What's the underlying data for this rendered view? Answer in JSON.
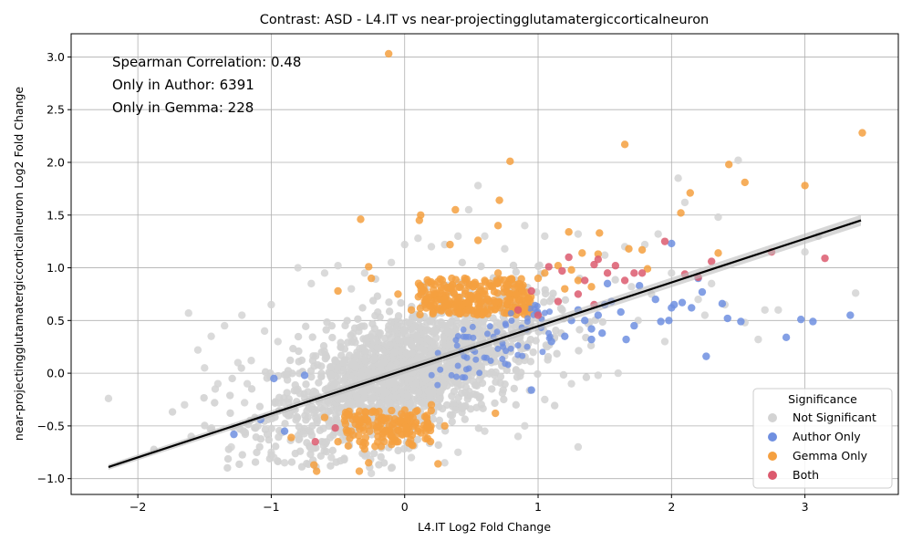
{
  "chart_data": {
    "type": "scatter",
    "title": "Contrast: ASD - L4.IT vs near-projectingglutamatergiccorticalneuron",
    "xlabel": "L4.IT Log2 Fold Change",
    "ylabel": "near-projectingglutamatergiccorticalneuron Log2 Fold Change",
    "xlim": [
      -2.5,
      3.7
    ],
    "ylim": [
      -1.15,
      3.22
    ],
    "x_ticks": [
      -2,
      -1,
      0,
      1,
      2,
      3
    ],
    "y_ticks": [
      -1.0,
      -0.5,
      0.0,
      0.5,
      1.0,
      1.5,
      2.0,
      2.5,
      3.0
    ],
    "x_tick_labels": [
      "−2",
      "−1",
      "0",
      "1",
      "2",
      "3"
    ],
    "y_tick_labels": [
      "−1.0",
      "−0.5",
      "0.0",
      "0.5",
      "1.0",
      "1.5",
      "2.0",
      "2.5",
      "3.0"
    ],
    "grid": true,
    "annotations": [
      "Spearman Correlation: 0.48",
      "Only in Author: 6391",
      "Only in Gemma: 228"
    ],
    "legend": {
      "title": "Significance",
      "placement": "lower-right",
      "entries": [
        "Not Significant",
        "Author Only",
        "Gemma Only",
        "Both"
      ]
    },
    "regression_line": {
      "x": [
        -2.22,
        3.42
      ],
      "y": [
        -0.89,
        1.45
      ],
      "color": "#000000"
    },
    "series": [
      {
        "name": "Not Significant",
        "color": "#d3d3d3",
        "points": [
          [
            -2.22,
            -0.24
          ],
          [
            -1.65,
            -0.3
          ],
          [
            -1.62,
            0.57
          ],
          [
            -1.55,
            0.22
          ],
          [
            -1.5,
            0.05
          ],
          [
            -1.42,
            -0.15
          ],
          [
            -1.35,
            0.45
          ],
          [
            -1.3,
            -0.7
          ],
          [
            -1.22,
            0.55
          ],
          [
            -1.2,
            -0.28
          ],
          [
            -1.15,
            0.12
          ],
          [
            -1.1,
            -0.5
          ],
          [
            -1.05,
            0.4
          ],
          [
            -1.0,
            0.65
          ],
          [
            -0.98,
            -0.8
          ],
          [
            -0.95,
            0.3
          ],
          [
            -0.8,
            1.0
          ],
          [
            -0.7,
            0.85
          ],
          [
            -0.6,
            0.95
          ],
          [
            -0.5,
            1.02
          ],
          [
            -0.4,
            0.8
          ],
          [
            -0.3,
            0.95
          ],
          [
            -0.1,
            1.05
          ],
          [
            0.0,
            1.22
          ],
          [
            0.1,
            1.28
          ],
          [
            0.2,
            1.2
          ],
          [
            0.3,
            1.22
          ],
          [
            0.4,
            1.3
          ],
          [
            0.55,
            1.78
          ],
          [
            0.48,
            1.55
          ],
          [
            0.6,
            1.3
          ],
          [
            0.75,
            1.18
          ],
          [
            0.9,
            1.4
          ],
          [
            1.05,
            1.3
          ],
          [
            1.3,
            1.32
          ],
          [
            1.5,
            1.12
          ],
          [
            1.65,
            1.2
          ],
          [
            1.8,
            1.22
          ],
          [
            1.9,
            1.32
          ],
          [
            2.05,
            1.85
          ],
          [
            2.1,
            1.62
          ],
          [
            2.5,
            2.02
          ],
          [
            2.35,
            1.48
          ],
          [
            2.7,
            0.6
          ],
          [
            2.8,
            0.6
          ],
          [
            2.65,
            0.32
          ],
          [
            3.1,
            1.3
          ],
          [
            3.38,
            0.76
          ],
          [
            3.0,
            1.15
          ],
          [
            2.4,
            0.65
          ],
          [
            2.2,
            0.7
          ],
          [
            1.95,
            0.3
          ],
          [
            1.6,
            0.0
          ],
          [
            1.3,
            -0.7
          ],
          [
            1.45,
            -0.02
          ],
          [
            1.25,
            -0.1
          ],
          [
            1.05,
            -0.25
          ],
          [
            0.9,
            -0.5
          ],
          [
            0.85,
            -0.6
          ],
          [
            0.6,
            -0.55
          ],
          [
            0.4,
            -0.75
          ],
          [
            0.3,
            -0.85
          ],
          [
            0.05,
            -0.8
          ],
          [
            -0.1,
            -0.9
          ],
          [
            -0.25,
            -0.95
          ],
          [
            -0.55,
            -0.8
          ],
          [
            -0.7,
            -0.72
          ],
          [
            -0.9,
            -0.85
          ],
          [
            -1.0,
            -0.75
          ],
          [
            -1.6,
            -0.6
          ],
          [
            -1.45,
            0.35
          ],
          [
            -1.25,
            0.1
          ],
          [
            -1.18,
            -0.1
          ],
          [
            -1.4,
            -0.1
          ],
          [
            1.75,
            0.5
          ],
          [
            1.85,
            0.75
          ],
          [
            2.0,
            0.95
          ],
          [
            1.7,
            0.82
          ],
          [
            2.25,
            0.55
          ],
          [
            2.3,
            0.85
          ],
          [
            2.55,
            0.48
          ]
        ]
      },
      {
        "name": "Author Only",
        "color": "#6f8fe0",
        "points": [
          [
            -1.28,
            -0.58
          ],
          [
            -1.08,
            -0.44
          ],
          [
            -0.98,
            -0.05
          ],
          [
            -0.9,
            -0.55
          ],
          [
            -0.75,
            -0.02
          ],
          [
            0.95,
            -0.16
          ],
          [
            1.1,
            0.3
          ],
          [
            1.2,
            0.35
          ],
          [
            1.3,
            0.6
          ],
          [
            1.35,
            0.5
          ],
          [
            1.4,
            0.42
          ],
          [
            1.45,
            0.55
          ],
          [
            1.5,
            0.65
          ],
          [
            1.52,
            0.85
          ],
          [
            1.55,
            0.68
          ],
          [
            1.62,
            0.58
          ],
          [
            1.66,
            0.32
          ],
          [
            1.72,
            0.45
          ],
          [
            1.76,
            0.83
          ],
          [
            1.88,
            0.7
          ],
          [
            1.92,
            0.49
          ],
          [
            1.98,
            0.5
          ],
          [
            2.0,
            0.62
          ],
          [
            2.02,
            0.65
          ],
          [
            2.08,
            0.67
          ],
          [
            2.15,
            0.62
          ],
          [
            2.2,
            0.9
          ],
          [
            2.23,
            0.77
          ],
          [
            2.26,
            0.16
          ],
          [
            2.38,
            0.66
          ],
          [
            2.42,
            0.52
          ],
          [
            2.52,
            0.49
          ],
          [
            2.86,
            0.34
          ],
          [
            2.97,
            0.51
          ],
          [
            3.06,
            0.49
          ],
          [
            3.34,
            0.55
          ],
          [
            2.0,
            1.23
          ],
          [
            1.4,
            0.32
          ],
          [
            1.48,
            0.38
          ],
          [
            1.25,
            0.5
          ]
        ]
      },
      {
        "name": "Gemma Only",
        "color": "#f5a040",
        "points": [
          [
            -0.12,
            3.03
          ],
          [
            0.79,
            2.01
          ],
          [
            1.65,
            2.17
          ],
          [
            2.43,
            1.98
          ],
          [
            2.55,
            1.81
          ],
          [
            3.0,
            1.78
          ],
          [
            3.43,
            2.28
          ],
          [
            2.14,
            1.71
          ],
          [
            2.07,
            1.52
          ],
          [
            0.71,
            1.64
          ],
          [
            0.38,
            1.55
          ],
          [
            0.12,
            1.5
          ],
          [
            0.11,
            1.45
          ],
          [
            -0.33,
            1.46
          ],
          [
            0.7,
            1.4
          ],
          [
            0.55,
            1.26
          ],
          [
            0.34,
            1.22
          ],
          [
            1.23,
            1.34
          ],
          [
            1.33,
            1.14
          ],
          [
            1.46,
            1.33
          ],
          [
            1.68,
            1.18
          ],
          [
            1.78,
            1.17
          ],
          [
            2.35,
            1.14
          ],
          [
            1.82,
            0.99
          ],
          [
            1.45,
            1.13
          ],
          [
            1.25,
            0.98
          ],
          [
            1.15,
            1.02
          ],
          [
            1.0,
            0.9
          ],
          [
            0.85,
            0.82
          ],
          [
            0.7,
            0.95
          ],
          [
            0.45,
            0.9
          ],
          [
            0.2,
            0.85
          ],
          [
            -0.05,
            0.75
          ],
          [
            -0.25,
            0.9
          ],
          [
            -0.5,
            0.78
          ],
          [
            -0.27,
            1.01
          ],
          [
            0.05,
            0.6
          ],
          [
            0.3,
            0.7
          ],
          [
            0.6,
            0.75
          ],
          [
            0.9,
            0.62
          ],
          [
            0.68,
            -0.38
          ],
          [
            0.3,
            -0.5
          ],
          [
            0.1,
            -0.55
          ],
          [
            -0.05,
            -0.65
          ],
          [
            -0.2,
            -0.6
          ],
          [
            -0.3,
            -0.72
          ],
          [
            -0.4,
            -0.55
          ],
          [
            -0.5,
            -0.65
          ],
          [
            -0.6,
            -0.42
          ],
          [
            -0.68,
            -0.87
          ],
          [
            -0.66,
            -0.93
          ],
          [
            -0.85,
            -0.61
          ],
          [
            -0.34,
            -0.93
          ],
          [
            -0.27,
            -0.85
          ],
          [
            0.25,
            -0.86
          ],
          [
            -0.15,
            -0.45
          ],
          [
            0.0,
            -0.35
          ],
          [
            -0.35,
            -0.4
          ],
          [
            -0.1,
            -0.6
          ],
          [
            0.2,
            -0.3
          ],
          [
            -0.45,
            -0.45
          ],
          [
            0.35,
            0.8
          ],
          [
            0.5,
            0.6
          ],
          [
            0.15,
            0.68
          ],
          [
            0.6,
            0.88
          ],
          [
            1.05,
            0.95
          ],
          [
            1.3,
            0.88
          ],
          [
            1.4,
            0.82
          ],
          [
            1.2,
            0.8
          ]
        ]
      },
      {
        "name": "Both",
        "color": "#dc5a6e",
        "points": [
          [
            -0.52,
            -0.52
          ],
          [
            -0.67,
            -0.65
          ],
          [
            0.85,
            0.6
          ],
          [
            0.95,
            0.78
          ],
          [
            1.08,
            1.01
          ],
          [
            1.18,
            0.97
          ],
          [
            1.23,
            1.1
          ],
          [
            1.3,
            0.75
          ],
          [
            1.35,
            0.88
          ],
          [
            1.42,
            1.03
          ],
          [
            1.45,
            1.08
          ],
          [
            1.52,
            0.95
          ],
          [
            1.58,
            1.02
          ],
          [
            1.65,
            0.88
          ],
          [
            1.72,
            0.95
          ],
          [
            1.78,
            0.95
          ],
          [
            1.95,
            1.25
          ],
          [
            2.1,
            0.94
          ],
          [
            2.2,
            0.91
          ],
          [
            2.3,
            1.06
          ],
          [
            2.75,
            1.15
          ],
          [
            3.15,
            1.09
          ],
          [
            1.42,
            0.65
          ],
          [
            1.15,
            0.68
          ],
          [
            1.0,
            0.55
          ]
        ]
      }
    ]
  }
}
